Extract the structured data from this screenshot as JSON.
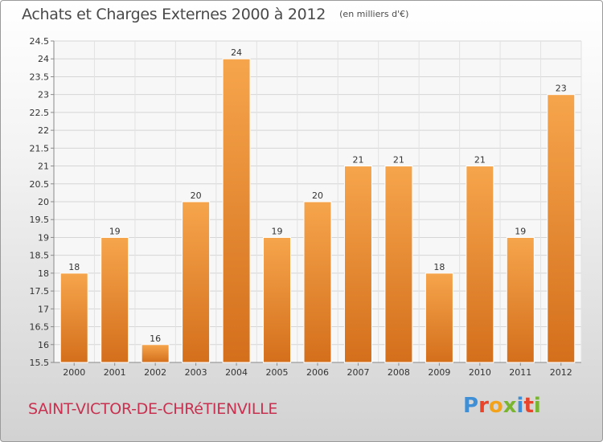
{
  "header": {
    "title": "Achats et Charges Externes 2000 à 2012",
    "unit": "(en milliers d'€)"
  },
  "footer": {
    "place": "SAINT-VICTOR-DE-CHRéTIENVILLE",
    "logo": "Proxiti",
    "logo_colors": [
      "#3f8fd6",
      "#e8432b",
      "#f2a31b",
      "#79b52f",
      "#3f8fd6",
      "#e8432b",
      "#79b52f"
    ]
  },
  "chart_data": {
    "type": "bar",
    "title": "Achats et Charges Externes 2000 à 2012",
    "subtitle": "(en milliers d'€)",
    "categories": [
      "2000",
      "2001",
      "2002",
      "2003",
      "2004",
      "2005",
      "2006",
      "2007",
      "2008",
      "2009",
      "2010",
      "2011",
      "2012"
    ],
    "values": [
      18,
      19,
      16,
      20,
      24,
      19,
      20,
      21,
      21,
      18,
      21,
      19,
      23
    ],
    "data_labels": [
      "18",
      "19",
      "16",
      "20",
      "24",
      "19",
      "20",
      "21",
      "21",
      "18",
      "21",
      "19",
      "23"
    ],
    "ylim": [
      15.5,
      24.5
    ],
    "yticks": [
      "15.5",
      "16",
      "16.5",
      "17",
      "17.5",
      "18",
      "18.5",
      "19",
      "19.5",
      "20",
      "20.5",
      "21",
      "21.5",
      "22",
      "22.5",
      "23",
      "23.5",
      "24",
      "24.5"
    ],
    "grid": true,
    "bar_color": "#f09a3e",
    "bar_color_dark": "#d9701c"
  }
}
